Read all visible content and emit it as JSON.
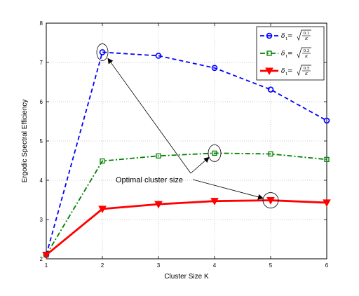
{
  "chart_data": {
    "type": "line",
    "title": "",
    "xlabel": "Cluster Size K",
    "ylabel": "Ergodic Spectral Efficiency",
    "xlim": [
      1,
      6
    ],
    "ylim": [
      2,
      8
    ],
    "xticks": [
      1,
      2,
      3,
      4,
      5,
      6
    ],
    "yticks": [
      2,
      3,
      4,
      5,
      6,
      7,
      8
    ],
    "grid": true,
    "legend_position": "top-right",
    "x": [
      1,
      2,
      3,
      4,
      5,
      6
    ],
    "series": [
      {
        "legend": {
          "symbol": "δ",
          "sub": "1",
          "eq": " = ",
          "num": "0.1",
          "den": "K"
        },
        "values": [
          2.1,
          7.26,
          7.17,
          6.86,
          6.31,
          5.52
        ],
        "color": "#0000ff",
        "dash": "dashed",
        "marker": "circle"
      },
      {
        "legend": {
          "symbol": "δ",
          "sub": "1",
          "eq": " = ",
          "num": "0.3",
          "den": "K"
        },
        "values": [
          2.1,
          4.49,
          4.62,
          4.69,
          4.67,
          4.53
        ],
        "color": "#008000",
        "dash": "dashdot",
        "marker": "square"
      },
      {
        "legend": {
          "symbol": "δ",
          "sub": "1",
          "eq": " = ",
          "num": "0.5",
          "den": "K"
        },
        "values": [
          2.1,
          3.27,
          3.39,
          3.47,
          3.49,
          3.43
        ],
        "color": "#ff0000",
        "dash": "solid",
        "marker": "triangle-down"
      }
    ],
    "annotation": {
      "text": "Optimal cluster size",
      "targets": [
        {
          "x": 2,
          "y": 7.26
        },
        {
          "x": 4,
          "y": 4.69
        },
        {
          "x": 5,
          "y": 3.49
        }
      ]
    }
  }
}
